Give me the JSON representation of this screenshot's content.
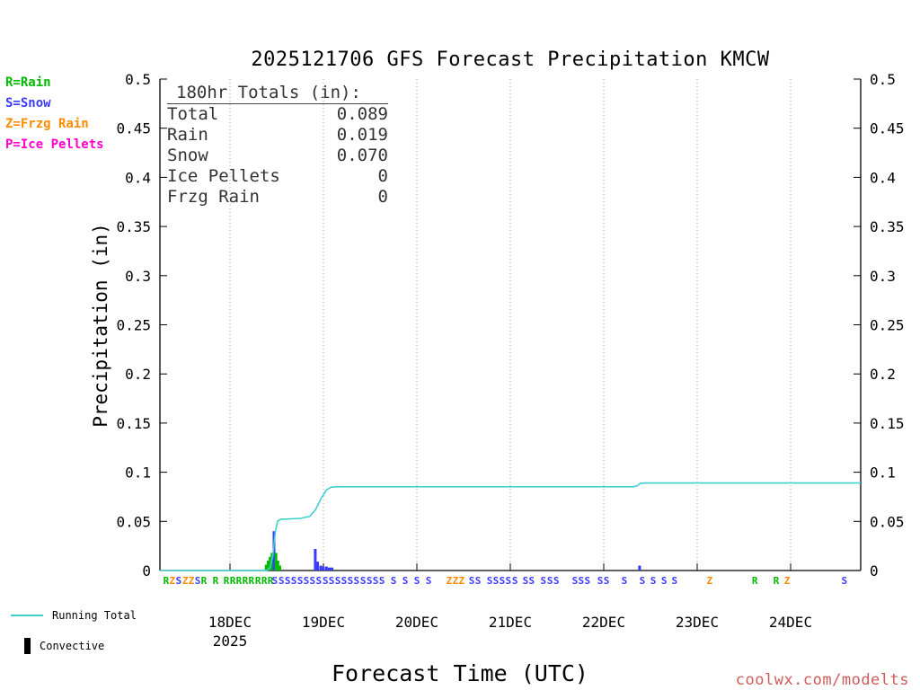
{
  "title": "2025121706 GFS Forecast Precipitation KMCW",
  "type_legend": [
    {
      "label": "R=Rain",
      "k": "r"
    },
    {
      "label": "S=Snow",
      "k": "s"
    },
    {
      "label": "Z=Frzg Rain",
      "k": "z"
    },
    {
      "label": "P=Ice Pellets",
      "k": "p"
    }
  ],
  "totals_box": {
    "heading": "180hr Totals (in):",
    "rows": [
      [
        "Total",
        "0.089"
      ],
      [
        "Rain",
        "0.019"
      ],
      [
        "Snow",
        "0.070"
      ],
      [
        "Ice Pellets",
        "0"
      ],
      [
        "Frzg Rain",
        "0"
      ]
    ]
  },
  "axes": {
    "y_label": "Precipitation (in)",
    "x_label": "Forecast Time (UTC)",
    "y_ticks": [
      "0",
      "0.05",
      "0.1",
      "0.15",
      "0.2",
      "0.25",
      "0.3",
      "0.35",
      "0.4",
      "0.45",
      "0.5"
    ],
    "y_min": 0,
    "y_max": 0.5,
    "t_max": 180,
    "x_ticks": [
      {
        "label": "18DEC",
        "t": 18
      },
      {
        "label": "19DEC",
        "t": 42
      },
      {
        "label": "20DEC",
        "t": 66
      },
      {
        "label": "21DEC",
        "t": 90
      },
      {
        "label": "22DEC",
        "t": 114
      },
      {
        "label": "23DEC",
        "t": 138
      },
      {
        "label": "24DEC",
        "t": 162
      }
    ],
    "x_sub_label": {
      "text": "2025",
      "t": 18
    }
  },
  "bottom_legend": {
    "running_total": "Running Total",
    "convective": "Convective"
  },
  "watermark": {
    "text": "coolwx.com/modelts",
    "color": "#cd5c5c"
  },
  "chart_data": {
    "type": "line",
    "title": "2025121706 GFS Forecast Precipitation KMCW",
    "xlabel": "Forecast Time (UTC)",
    "ylabel": "Precipitation (in)",
    "x_unit": "hours since 2025-12-17 06 UTC",
    "xlim": [
      0,
      180
    ],
    "ylim": [
      0,
      0.5
    ],
    "grid": "vertical-dotted-at-dates",
    "legend_position": "bottom-left",
    "type_colors": {
      "r": "#00bb00",
      "s": "#3b3bff",
      "z": "#ff8c00",
      "p": "#ff00cc"
    },
    "series": [
      {
        "name": "Running Total",
        "color": "#40d0d0",
        "points": [
          [
            0,
            0
          ],
          [
            27.5,
            0
          ],
          [
            28.3,
            0.003
          ],
          [
            29.0,
            0.015
          ],
          [
            29.6,
            0.038
          ],
          [
            30.2,
            0.05
          ],
          [
            31.0,
            0.052
          ],
          [
            36.0,
            0.053
          ],
          [
            38.5,
            0.055
          ],
          [
            40.0,
            0.062
          ],
          [
            41.5,
            0.074
          ],
          [
            42.8,
            0.082
          ],
          [
            44.0,
            0.0848
          ],
          [
            45.5,
            0.0852
          ],
          [
            121.5,
            0.0852
          ],
          [
            122.5,
            0.086
          ],
          [
            123.5,
            0.0888
          ],
          [
            125,
            0.089
          ],
          [
            180,
            0.089
          ]
        ]
      }
    ],
    "bars": [
      {
        "t": 27.3,
        "h": 0.006,
        "k": "r"
      },
      {
        "t": 27.8,
        "h": 0.01,
        "k": "r"
      },
      {
        "t": 28.3,
        "h": 0.014,
        "k": "r"
      },
      {
        "t": 28.8,
        "h": 0.018,
        "k": "r"
      },
      {
        "t": 29.3,
        "h": 0.04,
        "k": "s"
      },
      {
        "t": 29.8,
        "h": 0.018,
        "k": "r"
      },
      {
        "t": 30.3,
        "h": 0.01,
        "k": "r"
      },
      {
        "t": 30.8,
        "h": 0.005,
        "k": "r"
      },
      {
        "t": 39.9,
        "h": 0.022,
        "k": "s"
      },
      {
        "t": 40.5,
        "h": 0.009,
        "k": "s"
      },
      {
        "t": 41.3,
        "h": 0.005,
        "k": "s"
      },
      {
        "t": 42.0,
        "h": 0.004,
        "k": "s"
      },
      {
        "t": 42.8,
        "h": 0.004,
        "k": "s"
      },
      {
        "t": 43.5,
        "h": 0.003,
        "k": "s"
      },
      {
        "t": 44.2,
        "h": 0.003,
        "k": "s"
      },
      {
        "t": 123.2,
        "h": 0.005,
        "k": "s"
      }
    ],
    "type_letters": [
      [
        1.6,
        "R",
        "r"
      ],
      [
        3.2,
        "Z",
        "z"
      ],
      [
        4.8,
        "S",
        "s"
      ],
      [
        6.5,
        "Z",
        "z"
      ],
      [
        8.1,
        "Z",
        "z"
      ],
      [
        9.7,
        "S",
        "s"
      ],
      [
        11.3,
        "R",
        "r"
      ],
      [
        14.3,
        "R",
        "r"
      ],
      [
        17.1,
        "R",
        "r"
      ],
      [
        18.7,
        "R",
        "r"
      ],
      [
        20.3,
        "R",
        "r"
      ],
      [
        21.9,
        "R",
        "r"
      ],
      [
        23.5,
        "R",
        "r"
      ],
      [
        25.2,
        "R",
        "r"
      ],
      [
        26.8,
        "R",
        "r"
      ],
      [
        28.4,
        "R",
        "r"
      ],
      [
        29.5,
        "S",
        "s"
      ],
      [
        31.2,
        "S",
        "s"
      ],
      [
        32.8,
        "S",
        "s"
      ],
      [
        34.4,
        "S",
        "s"
      ],
      [
        36.0,
        "S",
        "s"
      ],
      [
        37.6,
        "S",
        "s"
      ],
      [
        39.2,
        "S",
        "s"
      ],
      [
        40.8,
        "S",
        "s"
      ],
      [
        42.5,
        "S",
        "s"
      ],
      [
        44.1,
        "S",
        "s"
      ],
      [
        45.7,
        "S",
        "s"
      ],
      [
        47.3,
        "S",
        "s"
      ],
      [
        48.9,
        "S",
        "s"
      ],
      [
        50.5,
        "S",
        "s"
      ],
      [
        52.2,
        "S",
        "s"
      ],
      [
        53.8,
        "S",
        "s"
      ],
      [
        55.4,
        "S",
        "s"
      ],
      [
        57.0,
        "S",
        "s"
      ],
      [
        60,
        "S",
        "s"
      ],
      [
        63,
        "S",
        "s"
      ],
      [
        66,
        "S",
        "s"
      ],
      [
        69,
        "S",
        "s"
      ],
      [
        74.3,
        "Z",
        "z"
      ],
      [
        75.9,
        "Z",
        "z"
      ],
      [
        77.5,
        "Z",
        "z"
      ],
      [
        80.1,
        "S",
        "s"
      ],
      [
        81.7,
        "S",
        "s"
      ],
      [
        84.7,
        "S",
        "s"
      ],
      [
        86.3,
        "S",
        "s"
      ],
      [
        87.9,
        "S",
        "s"
      ],
      [
        89.5,
        "S",
        "s"
      ],
      [
        91.2,
        "S",
        "s"
      ],
      [
        93.9,
        "S",
        "s"
      ],
      [
        95.5,
        "S",
        "s"
      ],
      [
        98.5,
        "S",
        "s"
      ],
      [
        100.2,
        "S",
        "s"
      ],
      [
        101.8,
        "S",
        "s"
      ],
      [
        106.6,
        "S",
        "s"
      ],
      [
        108.2,
        "S",
        "s"
      ],
      [
        109.8,
        "S",
        "s"
      ],
      [
        113.1,
        "S",
        "s"
      ],
      [
        114.7,
        "S",
        "s"
      ],
      [
        119.3,
        "S",
        "s"
      ],
      [
        123.9,
        "S",
        "s"
      ],
      [
        126.7,
        "S",
        "s"
      ],
      [
        129.5,
        "S",
        "s"
      ],
      [
        132.2,
        "S",
        "s"
      ],
      [
        141.2,
        "Z",
        "z"
      ],
      [
        152.8,
        "R",
        "r"
      ],
      [
        158.3,
        "R",
        "r"
      ],
      [
        161.1,
        "Z",
        "z"
      ],
      [
        175.8,
        "S",
        "s"
      ]
    ]
  }
}
